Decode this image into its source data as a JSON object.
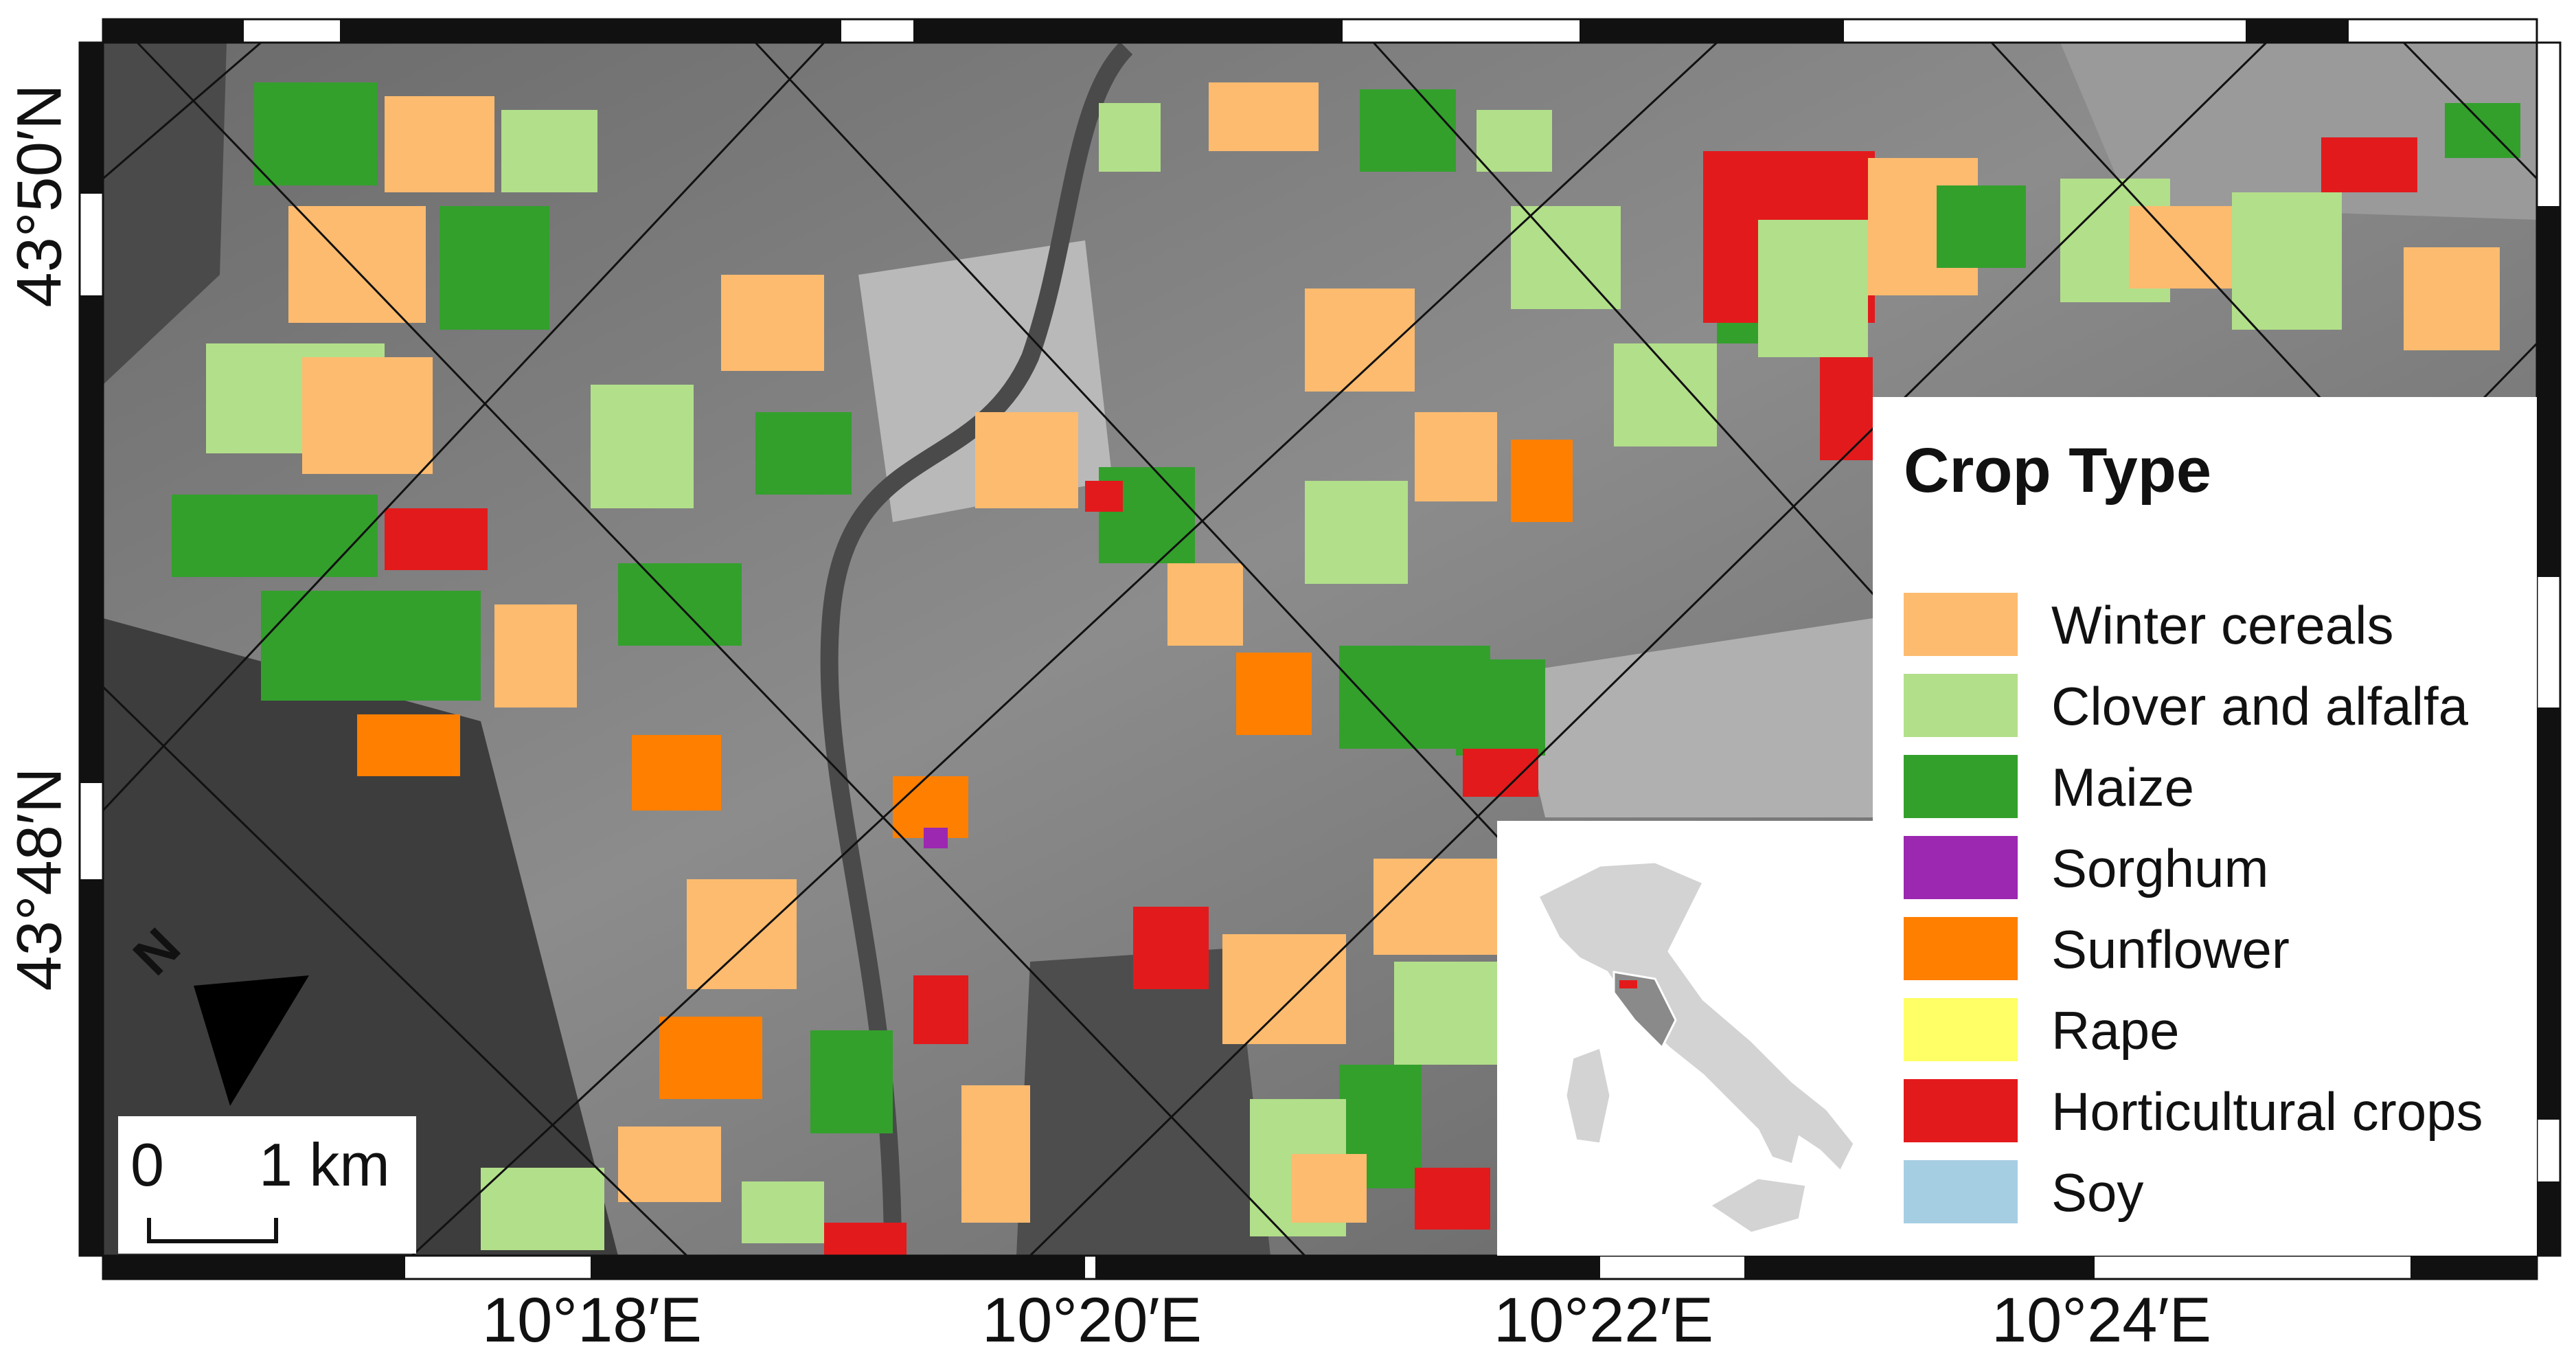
{
  "map": {
    "ylabels": [
      "43°50′N",
      "43°48′N"
    ],
    "xlabels": [
      "10°18′E",
      "10°20′E",
      "10°22′E",
      "10°24′E"
    ],
    "north_label": "N"
  },
  "legend": {
    "title": "Crop Type",
    "items": [
      {
        "label": "Winter cereals",
        "color": "#fdbb6f"
      },
      {
        "label": "Clover and alfalfa",
        "color": "#b2df8a"
      },
      {
        "label": "Maize",
        "color": "#33a02c"
      },
      {
        "label": "Sorghum",
        "color": "#9c27b0"
      },
      {
        "label": "Sunflower",
        "color": "#ff7f00"
      },
      {
        "label": "Rape",
        "color": "#ffff66"
      },
      {
        "label": "Horticultural crops",
        "color": "#e31a1c"
      },
      {
        "label": "Soy",
        "color": "#a6cee3"
      }
    ]
  },
  "scale_bar": {
    "start": "0",
    "end": "1 km"
  }
}
